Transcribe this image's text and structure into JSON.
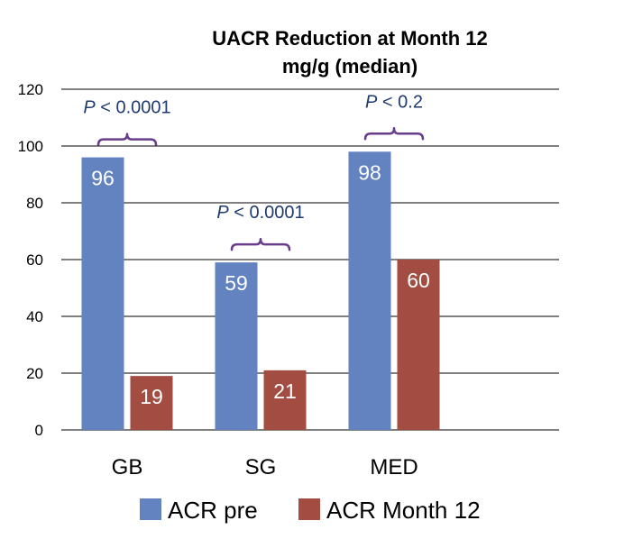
{
  "chart_data": {
    "type": "bar",
    "title": "UACR Reduction at Month 12",
    "subtitle": "mg/g (median)",
    "xlabel": "",
    "ylabel": "",
    "categories": [
      "GB",
      "SG",
      "MED"
    ],
    "series": [
      {
        "name": "ACR pre",
        "values": [
          96,
          59,
          98
        ],
        "color": "#6382C0"
      },
      {
        "name": "ACR Month 12",
        "values": [
          19,
          21,
          60
        ],
        "color": "#A34D42"
      }
    ],
    "ylim": [
      0,
      120
    ],
    "yticks": [
      "0",
      "20",
      "40",
      "60",
      "80",
      "100",
      "120"
    ],
    "grid": true,
    "legend_position": "bottom",
    "annotations": [
      {
        "category": "GB",
        "p_symbol": "P",
        "p_rest": " < 0.0001"
      },
      {
        "category": "SG",
        "p_symbol": "P",
        "p_rest": " < 0.0001"
      },
      {
        "category": "MED",
        "p_symbol": "P",
        "p_rest": " < 0.2"
      }
    ],
    "annotation_text_color": "#1F3A6E",
    "bracket_color": "#6A3C8C"
  }
}
